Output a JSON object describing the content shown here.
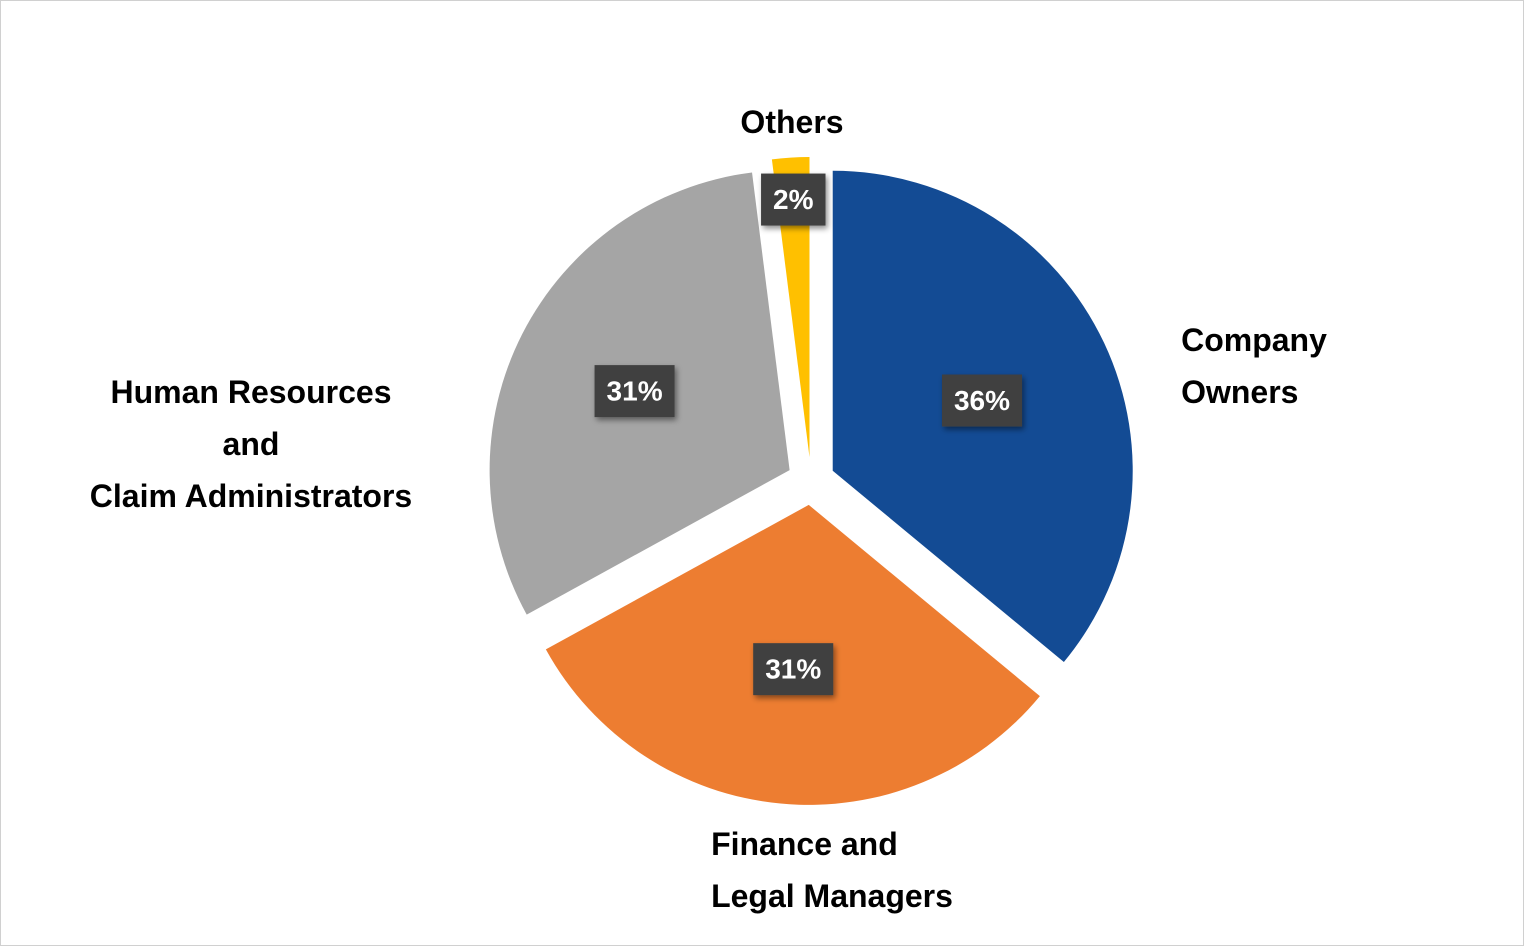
{
  "chart_data": {
    "type": "pie",
    "categories": [
      "Company\nOwners",
      "Finance and\nLegal Managers",
      "Human Resources\nand\nClaim Administrators",
      "Others"
    ],
    "values": [
      36,
      31,
      31,
      2
    ],
    "value_labels": [
      "36%",
      "31%",
      "31%",
      "2%"
    ],
    "colors": [
      "#134b94",
      "#ed7d31",
      "#a5a5a5",
      "#ffc000"
    ]
  }
}
